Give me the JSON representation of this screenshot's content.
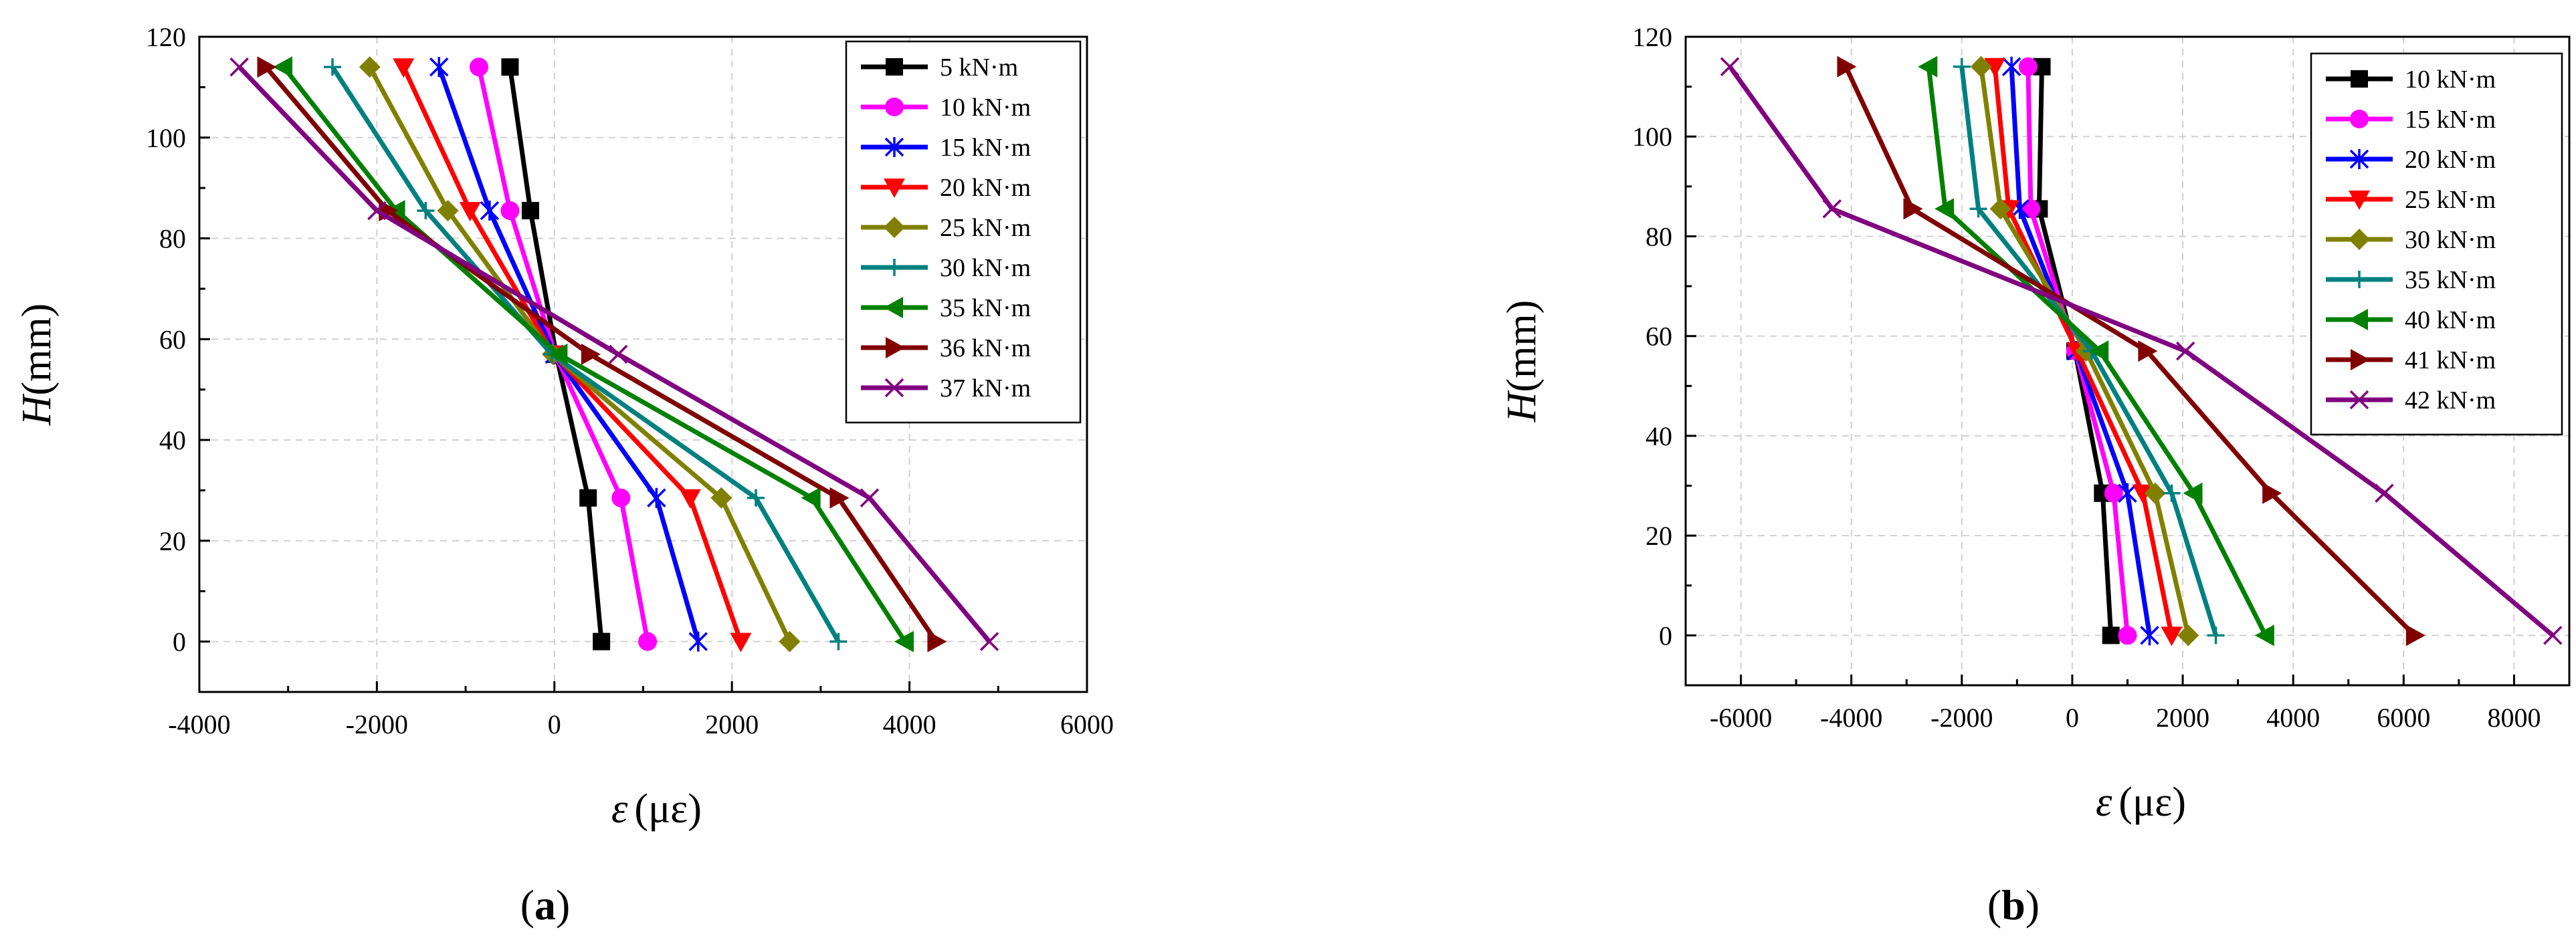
{
  "charts": [
    {
      "id": "a",
      "type": "line",
      "panel_label": "a",
      "xlabel_symbol": "ε",
      "xlabel_unit": "(με)",
      "ylabel_symbol": "H",
      "ylabel_unit": "(mm)",
      "xlim": [
        -4000,
        6000
      ],
      "ylim": [
        -10,
        120
      ],
      "xticks": [
        -4000,
        -2000,
        0,
        2000,
        4000,
        6000
      ],
      "yticks": [
        0,
        20,
        40,
        60,
        80,
        100,
        120
      ],
      "y_positions": [
        0,
        28.5,
        57,
        85.5,
        114
      ],
      "series": [
        {
          "name": "5 kN·m",
          "color": "#000000",
          "marker": "square",
          "x": [
            530,
            380,
            20,
            -270,
            -500
          ]
        },
        {
          "name": "10 kN·m",
          "color": "#ff00ff",
          "marker": "circle",
          "x": [
            1050,
            750,
            10,
            -500,
            -850
          ]
        },
        {
          "name": "15 kN·m",
          "color": "#0000ff",
          "marker": "asterisk",
          "x": [
            1620,
            1150,
            0,
            -730,
            -1300
          ]
        },
        {
          "name": "20 kN·m",
          "color": "#ff0000",
          "marker": "triangle-down",
          "x": [
            2100,
            1530,
            -10,
            -950,
            -1700
          ]
        },
        {
          "name": "25 kN·m",
          "color": "#808000",
          "marker": "diamond",
          "x": [
            2650,
            1880,
            -20,
            -1200,
            -2080
          ]
        },
        {
          "name": "30 kN·m",
          "color": "#008080",
          "marker": "plus",
          "x": [
            3200,
            2270,
            -30,
            -1450,
            -2500
          ]
        },
        {
          "name": "35 kN·m",
          "color": "#008000",
          "marker": "triangle-left",
          "x": [
            3950,
            2900,
            50,
            -1780,
            -3050
          ]
        },
        {
          "name": "36 kN·m",
          "color": "#800000",
          "marker": "triangle-right",
          "x": [
            4300,
            3200,
            400,
            -1880,
            -3250
          ]
        },
        {
          "name": "37 kN·m",
          "color": "#800080",
          "marker": "x",
          "x": [
            4900,
            3550,
            720,
            -2000,
            -3550
          ]
        }
      ]
    },
    {
      "id": "b",
      "type": "line",
      "panel_label": "b",
      "xlabel_symbol": "ε",
      "xlabel_unit": "(με)",
      "ylabel_symbol": "H",
      "ylabel_unit": "(mm)",
      "xlim": [
        -7000,
        9000
      ],
      "ylim": [
        -10,
        120
      ],
      "xticks": [
        -6000,
        -4000,
        -2000,
        0,
        2000,
        4000,
        6000,
        8000
      ],
      "yticks": [
        0,
        20,
        40,
        60,
        80,
        100,
        120
      ],
      "y_positions": [
        0,
        28.5,
        57,
        85.5,
        114
      ],
      "series": [
        {
          "name": "10 kN·m",
          "color": "#000000",
          "marker": "square",
          "x": [
            700,
            550,
            50,
            -600,
            -550
          ]
        },
        {
          "name": "15 kN·m",
          "color": "#ff00ff",
          "marker": "circle",
          "x": [
            1000,
            750,
            60,
            -750,
            -800
          ]
        },
        {
          "name": "20 kN·m",
          "color": "#0000ff",
          "marker": "asterisk",
          "x": [
            1400,
            1000,
            70,
            -950,
            -1100
          ]
        },
        {
          "name": "25 kN·m",
          "color": "#ff0000",
          "marker": "triangle-down",
          "x": [
            1800,
            1280,
            90,
            -1150,
            -1400
          ]
        },
        {
          "name": "30 kN·m",
          "color": "#808000",
          "marker": "diamond",
          "x": [
            2100,
            1500,
            250,
            -1300,
            -1650
          ]
        },
        {
          "name": "35 kN·m",
          "color": "#008080",
          "marker": "plus",
          "x": [
            2600,
            1800,
            350,
            -1700,
            -2000
          ]
        },
        {
          "name": "40 kN·m",
          "color": "#008000",
          "marker": "triangle-left",
          "x": [
            3500,
            2200,
            500,
            -2300,
            -2600
          ]
        },
        {
          "name": "41 kN·m",
          "color": "#800000",
          "marker": "triangle-right",
          "x": [
            6200,
            3600,
            1350,
            -2900,
            -4100
          ]
        },
        {
          "name": "42 kN·m",
          "color": "#800080",
          "marker": "x",
          "x": [
            8700,
            5650,
            2050,
            -4350,
            -6200
          ]
        }
      ]
    }
  ]
}
